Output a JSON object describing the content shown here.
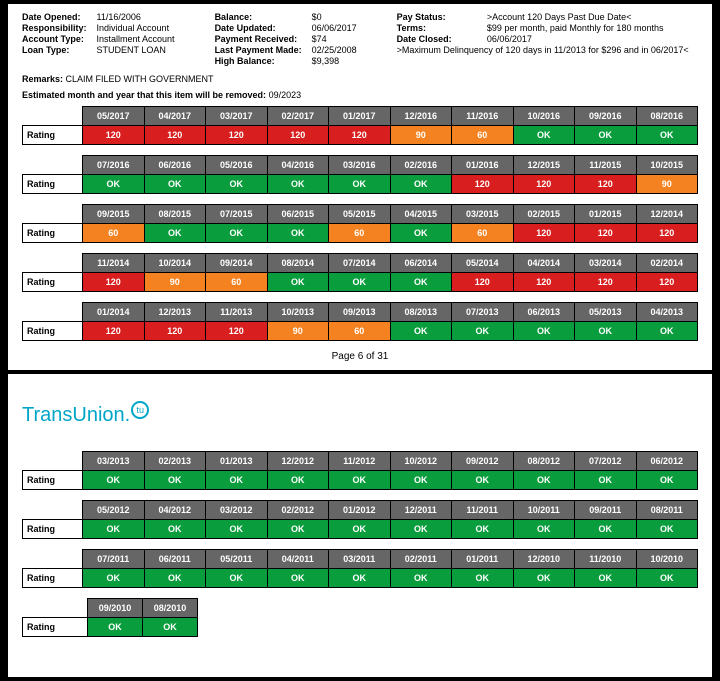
{
  "info": {
    "col1": [
      {
        "label": "Date Opened:",
        "value": "11/16/2006"
      },
      {
        "label": "Responsibility:",
        "value": "Individual Account"
      },
      {
        "label": "Account Type:",
        "value": "Installment Account"
      },
      {
        "label": "Loan Type:",
        "value": "STUDENT LOAN"
      }
    ],
    "col2": [
      {
        "label": "Balance:",
        "value": "$0"
      },
      {
        "label": "Date Updated:",
        "value": "06/06/2017"
      },
      {
        "label": "Payment Received:",
        "value": "$74"
      },
      {
        "label": "Last Payment Made:",
        "value": "02/25/2008"
      },
      {
        "label": "High Balance:",
        "value": "$9,398"
      }
    ],
    "col3": [
      {
        "label": "Pay Status:",
        "value": ">Account 120 Days Past Due Date<"
      },
      {
        "label": "Terms:",
        "value": "$99 per month, paid Monthly for 180 months"
      },
      {
        "label": "Date Closed:",
        "value": "06/06/2017"
      }
    ],
    "col3_extra": ">Maximum Delinquency of 120 days in 11/2013 for $296 and in 06/2017<"
  },
  "remarks_label": "Remarks:",
  "remarks_value": "CLAIM FILED WITH GOVERNMENT",
  "estimated_label": "Estimated month and year that this item will be removed:",
  "estimated_value": "09/2023",
  "row_label": "Rating",
  "page_footer": "Page 6 of 31",
  "logo_text": "TransUnion",
  "logo_badge": "tu",
  "colors": {
    "ok": "#0a9d3e",
    "red": "#d81e1e",
    "orange": "#f58220",
    "header": "#666666",
    "logo": "#00a6c7"
  },
  "blocks_page1": [
    {
      "months": [
        "05/2017",
        "04/2017",
        "03/2017",
        "02/2017",
        "01/2017",
        "12/2016",
        "11/2016",
        "10/2016",
        "09/2016",
        "08/2016"
      ],
      "cells": [
        {
          "v": "120",
          "c": "red"
        },
        {
          "v": "120",
          "c": "red"
        },
        {
          "v": "120",
          "c": "red"
        },
        {
          "v": "120",
          "c": "red"
        },
        {
          "v": "120",
          "c": "red"
        },
        {
          "v": "90",
          "c": "orange"
        },
        {
          "v": "60",
          "c": "orange"
        },
        {
          "v": "OK",
          "c": "ok"
        },
        {
          "v": "OK",
          "c": "ok"
        },
        {
          "v": "OK",
          "c": "ok"
        }
      ]
    },
    {
      "months": [
        "07/2016",
        "06/2016",
        "05/2016",
        "04/2016",
        "03/2016",
        "02/2016",
        "01/2016",
        "12/2015",
        "11/2015",
        "10/2015"
      ],
      "cells": [
        {
          "v": "OK",
          "c": "ok"
        },
        {
          "v": "OK",
          "c": "ok"
        },
        {
          "v": "OK",
          "c": "ok"
        },
        {
          "v": "OK",
          "c": "ok"
        },
        {
          "v": "OK",
          "c": "ok"
        },
        {
          "v": "OK",
          "c": "ok"
        },
        {
          "v": "120",
          "c": "red"
        },
        {
          "v": "120",
          "c": "red"
        },
        {
          "v": "120",
          "c": "red"
        },
        {
          "v": "90",
          "c": "orange"
        }
      ]
    },
    {
      "months": [
        "09/2015",
        "08/2015",
        "07/2015",
        "06/2015",
        "05/2015",
        "04/2015",
        "03/2015",
        "02/2015",
        "01/2015",
        "12/2014"
      ],
      "cells": [
        {
          "v": "60",
          "c": "orange"
        },
        {
          "v": "OK",
          "c": "ok"
        },
        {
          "v": "OK",
          "c": "ok"
        },
        {
          "v": "OK",
          "c": "ok"
        },
        {
          "v": "60",
          "c": "orange"
        },
        {
          "v": "OK",
          "c": "ok"
        },
        {
          "v": "60",
          "c": "orange"
        },
        {
          "v": "120",
          "c": "red"
        },
        {
          "v": "120",
          "c": "red"
        },
        {
          "v": "120",
          "c": "red"
        }
      ]
    },
    {
      "months": [
        "11/2014",
        "10/2014",
        "09/2014",
        "08/2014",
        "07/2014",
        "06/2014",
        "05/2014",
        "04/2014",
        "03/2014",
        "02/2014"
      ],
      "cells": [
        {
          "v": "120",
          "c": "red"
        },
        {
          "v": "90",
          "c": "orange"
        },
        {
          "v": "60",
          "c": "orange"
        },
        {
          "v": "OK",
          "c": "ok"
        },
        {
          "v": "OK",
          "c": "ok"
        },
        {
          "v": "OK",
          "c": "ok"
        },
        {
          "v": "120",
          "c": "red"
        },
        {
          "v": "120",
          "c": "red"
        },
        {
          "v": "120",
          "c": "red"
        },
        {
          "v": "120",
          "c": "red"
        }
      ]
    },
    {
      "months": [
        "01/2014",
        "12/2013",
        "11/2013",
        "10/2013",
        "09/2013",
        "08/2013",
        "07/2013",
        "06/2013",
        "05/2013",
        "04/2013"
      ],
      "cells": [
        {
          "v": "120",
          "c": "red"
        },
        {
          "v": "120",
          "c": "red"
        },
        {
          "v": "120",
          "c": "red"
        },
        {
          "v": "90",
          "c": "orange"
        },
        {
          "v": "60",
          "c": "orange"
        },
        {
          "v": "OK",
          "c": "ok"
        },
        {
          "v": "OK",
          "c": "ok"
        },
        {
          "v": "OK",
          "c": "ok"
        },
        {
          "v": "OK",
          "c": "ok"
        },
        {
          "v": "OK",
          "c": "ok"
        }
      ]
    }
  ],
  "blocks_page2": [
    {
      "months": [
        "03/2013",
        "02/2013",
        "01/2013",
        "12/2012",
        "11/2012",
        "10/2012",
        "09/2012",
        "08/2012",
        "07/2012",
        "06/2012"
      ],
      "cells": [
        {
          "v": "OK",
          "c": "ok"
        },
        {
          "v": "OK",
          "c": "ok"
        },
        {
          "v": "OK",
          "c": "ok"
        },
        {
          "v": "OK",
          "c": "ok"
        },
        {
          "v": "OK",
          "c": "ok"
        },
        {
          "v": "OK",
          "c": "ok"
        },
        {
          "v": "OK",
          "c": "ok"
        },
        {
          "v": "OK",
          "c": "ok"
        },
        {
          "v": "OK",
          "c": "ok"
        },
        {
          "v": "OK",
          "c": "ok"
        }
      ]
    },
    {
      "months": [
        "05/2012",
        "04/2012",
        "03/2012",
        "02/2012",
        "01/2012",
        "12/2011",
        "11/2011",
        "10/2011",
        "09/2011",
        "08/2011"
      ],
      "cells": [
        {
          "v": "OK",
          "c": "ok"
        },
        {
          "v": "OK",
          "c": "ok"
        },
        {
          "v": "OK",
          "c": "ok"
        },
        {
          "v": "OK",
          "c": "ok"
        },
        {
          "v": "OK",
          "c": "ok"
        },
        {
          "v": "OK",
          "c": "ok"
        },
        {
          "v": "OK",
          "c": "ok"
        },
        {
          "v": "OK",
          "c": "ok"
        },
        {
          "v": "OK",
          "c": "ok"
        },
        {
          "v": "OK",
          "c": "ok"
        }
      ]
    },
    {
      "months": [
        "07/2011",
        "06/2011",
        "05/2011",
        "04/2011",
        "03/2011",
        "02/2011",
        "01/2011",
        "12/2010",
        "11/2010",
        "10/2010"
      ],
      "cells": [
        {
          "v": "OK",
          "c": "ok"
        },
        {
          "v": "OK",
          "c": "ok"
        },
        {
          "v": "OK",
          "c": "ok"
        },
        {
          "v": "OK",
          "c": "ok"
        },
        {
          "v": "OK",
          "c": "ok"
        },
        {
          "v": "OK",
          "c": "ok"
        },
        {
          "v": "OK",
          "c": "ok"
        },
        {
          "v": "OK",
          "c": "ok"
        },
        {
          "v": "OK",
          "c": "ok"
        },
        {
          "v": "OK",
          "c": "ok"
        }
      ]
    },
    {
      "months": [
        "09/2010",
        "08/2010"
      ],
      "cells": [
        {
          "v": "OK",
          "c": "ok"
        },
        {
          "v": "OK",
          "c": "ok"
        }
      ]
    }
  ]
}
